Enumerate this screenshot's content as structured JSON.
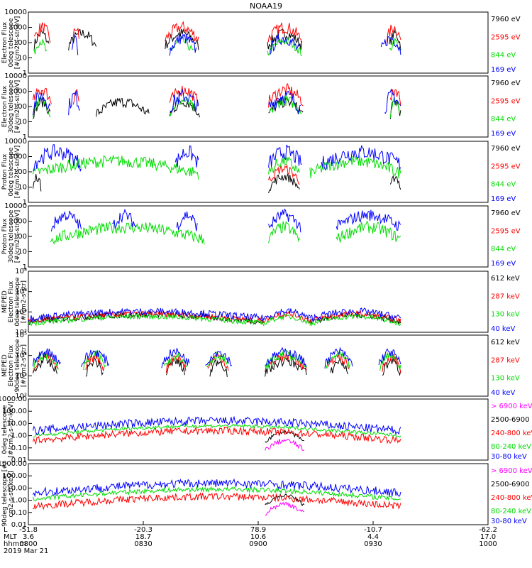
{
  "title": "NOAA19",
  "colors": {
    "black": "#000000",
    "red": "#ff0000",
    "green": "#00dd00",
    "blue": "#0000ff",
    "magenta": "#ff00ff"
  },
  "chart_data": [
    {
      "type": "line",
      "panel": 1,
      "ylabel": [
        "Electron Flux",
        "0deg telescope",
        "[#/cm2-s-str-eV]"
      ],
      "yticks": [
        "1",
        "10",
        "100",
        "1000",
        "10000"
      ],
      "ylim_log": [
        0,
        4
      ],
      "series": [
        {
          "name": "7960 eV",
          "color": "#000000",
          "segments": [
            [
              0.5,
              1.8
            ],
            [
              3.5,
              5.9
            ],
            [
              11.9,
              14.8
            ],
            [
              20.8,
              23.8
            ],
            [
              31.4,
              32.4
            ]
          ],
          "level": 1.8,
          "noise": 0.35
        },
        {
          "name": "2595 eV",
          "color": "#ff0000",
          "segments": [
            [
              0.5,
              1.9
            ],
            [
              3.9,
              4.4
            ],
            [
              11.9,
              14.8
            ],
            [
              20.8,
              23.8
            ],
            [
              31.2,
              32.4
            ]
          ],
          "level": 2.2,
          "noise": 0.4
        },
        {
          "name": "844 eV",
          "color": "#00dd00",
          "segments": [
            [
              0.5,
              1.6
            ],
            [
              12.2,
              14.4
            ],
            [
              20.8,
              23.8
            ],
            [
              31.4,
              32.4
            ]
          ],
          "level": 1.3,
          "noise": 0.3
        },
        {
          "name": "169 eV",
          "color": "#0000ff",
          "segments": [
            [
              3.8,
              4.3
            ],
            [
              12.3,
              14.6
            ],
            [
              21.0,
              23.5
            ],
            [
              30.7,
              32.4
            ]
          ],
          "level": 1.5,
          "noise": 0.4
        }
      ]
    },
    {
      "type": "line",
      "panel": 2,
      "ylabel": [
        "Electron Flux",
        "30deg telescope",
        "[#/cm2-s-str-eV]"
      ],
      "yticks": [
        "1",
        "10",
        "100",
        "1000",
        "10000"
      ],
      "ylim_log": [
        0,
        4
      ],
      "series": [
        {
          "name": "7960 eV",
          "color": "#000000",
          "segments": [
            [
              0.4,
              1.9
            ],
            [
              5.9,
              10.5
            ],
            [
              12.3,
              14.9
            ],
            [
              20.9,
              23.9
            ],
            [
              31.5,
              32.4
            ]
          ],
          "level": 1.5,
          "noise": 0.35
        },
        {
          "name": "2595 eV",
          "color": "#ff0000",
          "segments": [
            [
              0.4,
              2.0
            ],
            [
              3.9,
              4.4
            ],
            [
              12.3,
              14.8
            ],
            [
              20.9,
              23.9
            ],
            [
              31.5,
              32.4
            ]
          ],
          "level": 2.3,
          "noise": 0.4
        },
        {
          "name": "844 eV",
          "color": "#00dd00",
          "segments": [
            [
              0.4,
              1.9
            ],
            [
              12.3,
              14.6
            ],
            [
              21.0,
              23.8
            ],
            [
              31.5,
              32.4
            ]
          ],
          "level": 1.6,
          "noise": 0.35
        },
        {
          "name": "169 eV",
          "color": "#0000ff",
          "segments": [
            [
              0.4,
              1.9
            ],
            [
              3.5,
              4.5
            ],
            [
              12.3,
              14.8
            ],
            [
              20.9,
              23.7
            ],
            [
              31.0,
              32.4
            ]
          ],
          "level": 1.9,
          "noise": 0.5
        }
      ]
    },
    {
      "type": "line",
      "panel": 3,
      "ylabel": [
        "Proton Flux",
        "0deg telescope",
        "[#/cm2-s-str-eV]"
      ],
      "yticks": [
        "1",
        "10",
        "100",
        "1000",
        "10000"
      ],
      "ylim_log": [
        0,
        4
      ],
      "series": [
        {
          "name": "7960 eV",
          "color": "#000000",
          "segments": [
            [
              0.4,
              1.1
            ],
            [
              20.9,
              23.6
            ],
            [
              31.5,
              32.4
            ]
          ],
          "level": 0.9,
          "noise": 0.3
        },
        {
          "name": "2595 eV",
          "color": "#ff0000",
          "segments": [
            [
              20.9,
              23.6
            ]
          ],
          "level": 1.4,
          "noise": 0.3
        },
        {
          "name": "844 eV",
          "color": "#00dd00",
          "segments": [
            [
              0.4,
              14.8
            ],
            [
              20.9,
              23.6
            ],
            [
              24.5,
              32.4
            ]
          ],
          "level": 1.9,
          "noise": 0.4
        },
        {
          "name": "169 eV",
          "color": "#0000ff",
          "segments": [
            [
              0.4,
              4.6
            ],
            [
              12.8,
              14.8
            ],
            [
              20.9,
              23.8
            ],
            [
              25.5,
              32.4
            ]
          ],
          "level": 2.5,
          "noise": 0.5
        }
      ]
    },
    {
      "type": "line",
      "panel": 4,
      "ylabel": [
        "Proton Flux",
        "30deg telescope",
        "[#/cm2-s-str-eV]"
      ],
      "yticks": [
        "1",
        "10",
        "100",
        "1000",
        "10000"
      ],
      "ylim_log": [
        0,
        4
      ],
      "series": [
        {
          "name": "7960 eV",
          "color": "#000000",
          "segments": [],
          "level": 0,
          "noise": 0
        },
        {
          "name": "2595 eV",
          "color": "#ff0000",
          "segments": [],
          "level": 0,
          "noise": 0
        },
        {
          "name": "844 eV",
          "color": "#00dd00",
          "segments": [
            [
              1.9,
              15.3
            ],
            [
              20.9,
              23.6
            ],
            [
              26.8,
              32.4
            ]
          ],
          "level": 1.8,
          "noise": 0.4
        },
        {
          "name": "169 eV",
          "color": "#0000ff",
          "segments": [
            [
              2.0,
              4.6
            ],
            [
              7.3,
              9.4
            ],
            [
              12.9,
              14.7
            ],
            [
              20.9,
              23.7
            ],
            [
              26.8,
              32.4
            ]
          ],
          "level": 2.6,
          "noise": 0.4
        }
      ]
    },
    {
      "type": "line",
      "panel": 5,
      "ylabel": [
        "MEPED",
        "Electron Flux",
        "0deg telescope",
        "[#/cm2-s-str]"
      ],
      "yticks": [
        "10²",
        "10⁴",
        "10⁶",
        "10⁸"
      ],
      "ylim_log": [
        1,
        8
      ],
      "series": [
        {
          "name": "612 keV",
          "color": "#000000",
          "segments": [
            [
              0,
              20.5
            ],
            [
              24.5,
              32.4
            ]
          ],
          "level": 2.2,
          "noise": 0.35
        },
        {
          "name": "287 keV",
          "color": "#ff0000",
          "segments": [
            [
              0,
              20.5
            ],
            [
              20.5,
              24.5
            ],
            [
              24.5,
              32.4
            ]
          ],
          "level": 2.3,
          "noise": 0.35
        },
        {
          "name": "130 keV",
          "color": "#00dd00",
          "segments": [
            [
              0,
              20.5
            ],
            [
              20.5,
              24.5
            ],
            [
              24.5,
              32.4
            ]
          ],
          "level": 2.0,
          "noise": 0.3
        },
        {
          "name": "40 keV",
          "color": "#0000ff",
          "segments": [
            [
              0,
              20.5
            ],
            [
              20.5,
              24.5
            ],
            [
              24.5,
              32.4
            ]
          ],
          "level": 2.6,
          "noise": 0.4
        }
      ]
    },
    {
      "type": "line",
      "panel": 6,
      "ylabel": [
        "MEPED",
        "Electron Flux",
        "90deg telescope",
        "[#/cm2-s-str]"
      ],
      "yticks": [
        "10²",
        "10³",
        "10⁴",
        "10⁵"
      ],
      "ylim_log": [
        1.5,
        5.5
      ],
      "series": [
        {
          "name": "612 keV",
          "color": "#000000",
          "segments": [
            [
              0.4,
              2.5
            ],
            [
              5.0,
              6.5
            ],
            [
              12.0,
              13.6
            ],
            [
              15.8,
              17.3
            ],
            [
              20.6,
              24.2
            ],
            [
              26.3,
              27.8
            ],
            [
              30.8,
              32.4
            ]
          ],
          "level": 3.0,
          "noise": 0.3
        },
        {
          "name": "287 keV",
          "color": "#ff0000",
          "segments": [
            [
              0.4,
              2.5
            ],
            [
              5.0,
              6.6
            ],
            [
              12.0,
              13.7
            ],
            [
              15.6,
              17.4
            ],
            [
              20.6,
              24.2
            ],
            [
              26.1,
              27.9
            ],
            [
              30.8,
              32.4
            ]
          ],
          "level": 3.3,
          "noise": 0.3
        },
        {
          "name": "130 keV",
          "color": "#00dd00",
          "segments": [
            [
              0.4,
              2.6
            ],
            [
              4.8,
              6.8
            ],
            [
              11.8,
              13.8
            ],
            [
              15.5,
              17.5
            ],
            [
              20.6,
              24.2
            ],
            [
              25.9,
              28.0
            ],
            [
              30.6,
              32.4
            ]
          ],
          "level": 3.4,
          "noise": 0.3
        },
        {
          "name": "40 keV",
          "color": "#0000ff",
          "segments": [
            [
              0.4,
              2.8
            ],
            [
              4.6,
              7.0
            ],
            [
              11.6,
              14.0
            ],
            [
              15.4,
              17.7
            ],
            [
              20.6,
              24.2
            ],
            [
              25.8,
              28.2
            ],
            [
              30.5,
              32.4
            ]
          ],
          "level": 3.6,
          "noise": 0.3
        }
      ]
    },
    {
      "type": "line",
      "panel": 7,
      "ylabel": [
        "0deg telescope",
        "[#/cm2-s-str-keV]"
      ],
      "yticks": [
        "0.01",
        "0.10",
        "1.00",
        "10.00",
        "100.00",
        "1000.00"
      ],
      "ylim_log": [
        -2,
        3
      ],
      "series": [
        {
          "name": "> 6900 keV",
          "color": "#ff00ff",
          "segments": [
            [
              20.6,
              24.0
            ]
          ],
          "level": -1.2,
          "noise": 0.2
        },
        {
          "name": "2500-6900",
          "color": "#000000",
          "segments": [
            [
              20.6,
              24.0
            ]
          ],
          "level": -0.5,
          "noise": 0.15
        },
        {
          "name": "240-800 keV",
          "color": "#ff0000",
          "segments": [
            [
              0.4,
              32.4
            ]
          ],
          "level": -0.4,
          "noise": 0.3
        },
        {
          "name": "80-240 keV",
          "color": "#00dd00",
          "segments": [
            [
              0.4,
              32.4
            ]
          ],
          "level": 0.0,
          "noise": 0.15
        },
        {
          "name": "30-80 keV",
          "color": "#0000ff",
          "segments": [
            [
              0.4,
              32.4
            ]
          ],
          "level": 0.4,
          "noise": 0.35
        }
      ]
    },
    {
      "type": "line",
      "panel": 8,
      "ylabel": [
        "90deg telescope [#/",
        "cm2-s-str-keV]"
      ],
      "yticks": [
        "0.01",
        "0.10",
        "1.00",
        "10.00",
        "100.00",
        "1000.00"
      ],
      "ylim_log": [
        -2,
        3
      ],
      "series": [
        {
          "name": "> 6900 keV",
          "color": "#ff00ff",
          "segments": [
            [
              20.6,
              24.0
            ]
          ],
          "level": -1.1,
          "noise": 0.2
        },
        {
          "name": "2500-6900",
          "color": "#000000",
          "segments": [
            [
              20.6,
              24.0
            ]
          ],
          "level": -0.4,
          "noise": 0.15
        },
        {
          "name": "240-800 keV",
          "color": "#ff0000",
          "segments": [
            [
              0.4,
              32.4
            ]
          ],
          "level": -0.5,
          "noise": 0.3
        },
        {
          "name": "80-240 keV",
          "color": "#00dd00",
          "segments": [
            [
              0.4,
              32.4
            ]
          ],
          "level": 0.1,
          "noise": 0.2
        },
        {
          "name": "30-80 keV",
          "color": "#0000ff",
          "segments": [
            [
              0.4,
              32.4
            ]
          ],
          "level": 0.6,
          "noise": 0.35
        }
      ]
    }
  ],
  "xaxis": {
    "row_labels": [
      "L",
      "MLT",
      "hhmm",
      "2019 Mar 21"
    ],
    "xlim_minutes": [
      0,
      40
    ],
    "ticks": [
      {
        "t": 0,
        "l": "-51.8",
        "mlt": "3.6",
        "hhmm": "0800"
      },
      {
        "t": 10,
        "l": "-20.3",
        "mlt": "18.7",
        "hhmm": "0830"
      },
      {
        "t": 20,
        "l": "78.9",
        "mlt": "10.6",
        "hhmm": "0900"
      },
      {
        "t": 30,
        "l": "-10.7",
        "mlt": "4.4",
        "hhmm": "0930"
      },
      {
        "t": 40,
        "l": "-62.2",
        "mlt": "17.0",
        "hhmm": "1000"
      }
    ]
  }
}
